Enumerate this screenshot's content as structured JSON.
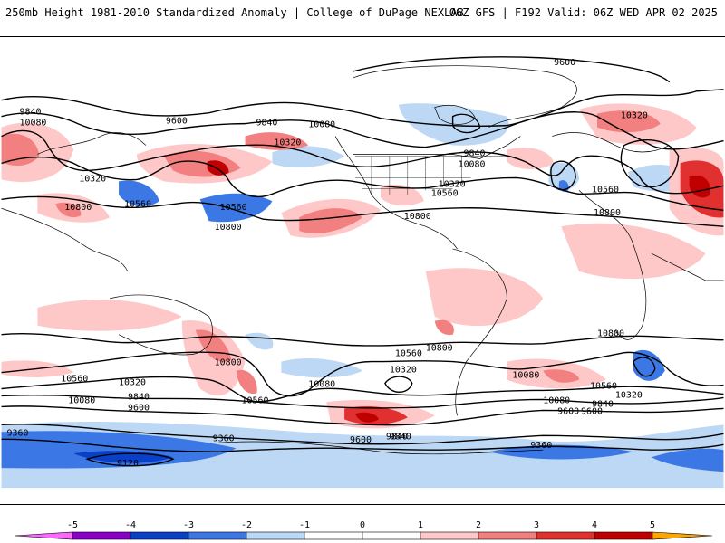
{
  "header": {
    "left_title": "250mb Height 1981-2010 Standardized Anomaly | College of DuPage NEXLAB",
    "right_title": "06Z GFS | F192 Valid: 06Z WED APR 02 2025"
  },
  "colors": {
    "ocean_land_bg": "#ffffff",
    "coast": "#000000",
    "neg5": "#ff66ff",
    "neg4": "#8a00c8",
    "neg3": "#0a3fc8",
    "neg2": "#3b78e6",
    "neg1": "#bcd8f5",
    "pos1": "#ffc8c8",
    "pos2": "#f28080",
    "pos3": "#e03030",
    "pos4": "#c00000",
    "pos5": "#ffa500"
  },
  "colorbar": {
    "ticks": [
      "-5",
      "-4",
      "-3",
      "-2",
      "-1",
      "0",
      "1",
      "2",
      "3",
      "4",
      "5"
    ]
  },
  "contour_labels": [
    "9600",
    "9840",
    "10080",
    "9600",
    "9840",
    "10080",
    "10320",
    "10320",
    "10560",
    "10800",
    "10560",
    "10800",
    "9840",
    "10080",
    "10320",
    "10560",
    "10800",
    "10320",
    "10560",
    "10800",
    "10800",
    "10560",
    "10800",
    "10320",
    "10080",
    "10560",
    "10320",
    "10080",
    "9840",
    "9600",
    "10560",
    "10080",
    "9840",
    "9600",
    "10560",
    "10800",
    "10320",
    "10080",
    "9840",
    "9600",
    "9360",
    "9360",
    "9120",
    "9600",
    "9840",
    "9360"
  ]
}
